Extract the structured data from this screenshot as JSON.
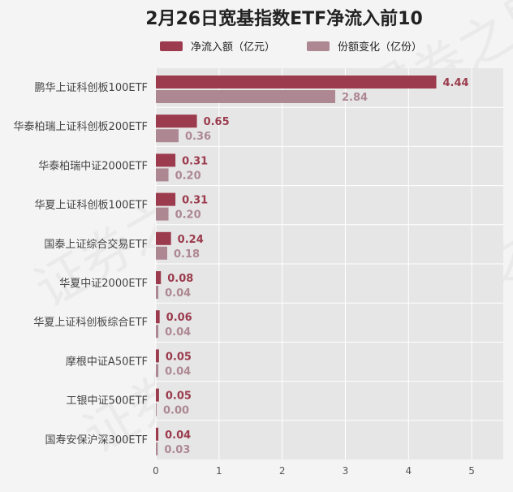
{
  "watermark": "证券之星",
  "chart_data": {
    "type": "bar",
    "orientation": "horizontal",
    "title": "2月26日宽基指数ETF净流入前10",
    "categories": [
      "鹏华上证科创板100ETF",
      "华泰柏瑞上证科创板200ETF",
      "华泰柏瑞中证2000ETF",
      "华夏上证科创板100ETF",
      "国泰上证综合交易ETF",
      "华夏中证2000ETF",
      "华夏上证科创板综合ETF",
      "摩根中证A50ETF",
      "工银中证500ETF",
      "国寿安保沪深300ETF"
    ],
    "series": [
      {
        "name": "净流入额（亿元）",
        "values": [
          4.44,
          0.65,
          0.31,
          0.31,
          0.24,
          0.08,
          0.06,
          0.05,
          0.05,
          0.04
        ],
        "color": "#9b3b4d"
      },
      {
        "name": "份额变化（亿份）",
        "values": [
          2.84,
          0.36,
          0.2,
          0.2,
          0.18,
          0.04,
          0.04,
          0.04,
          0.0,
          0.03
        ],
        "color": "#ad8893"
      }
    ],
    "xlim": [
      0,
      5.5
    ],
    "xticks": [
      "0",
      "1",
      "2",
      "3",
      "4",
      "5"
    ],
    "grid": true,
    "legend": "top"
  }
}
